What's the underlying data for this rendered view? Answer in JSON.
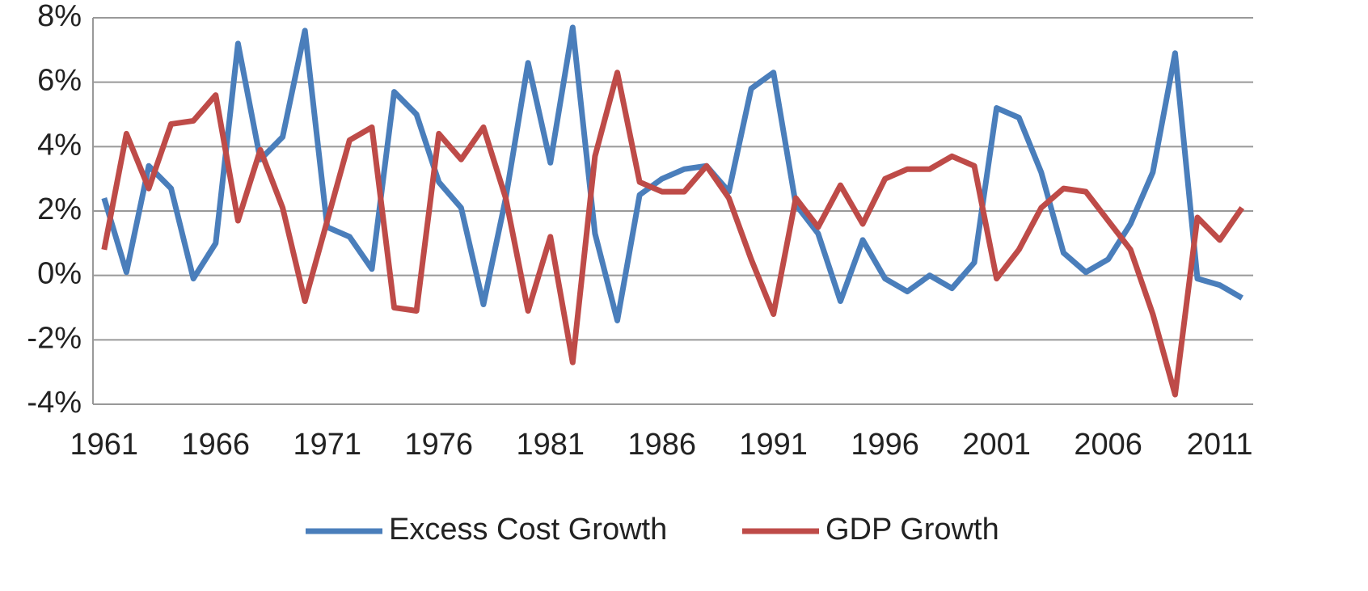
{
  "chart_data": {
    "type": "line",
    "x": [
      1961,
      1962,
      1963,
      1964,
      1965,
      1966,
      1967,
      1968,
      1969,
      1970,
      1971,
      1972,
      1973,
      1974,
      1975,
      1976,
      1977,
      1978,
      1979,
      1980,
      1981,
      1982,
      1983,
      1984,
      1985,
      1986,
      1987,
      1988,
      1989,
      1990,
      1991,
      1992,
      1993,
      1994,
      1995,
      1996,
      1997,
      1998,
      1999,
      2000,
      2001,
      2002,
      2003,
      2004,
      2005,
      2006,
      2007,
      2008,
      2009,
      2010,
      2011,
      2012
    ],
    "series": [
      {
        "name": "Excess Cost Growth",
        "color": "#4a7ebb",
        "values": [
          2.4,
          0.1,
          3.4,
          2.7,
          -0.1,
          1.0,
          7.2,
          3.6,
          4.3,
          7.6,
          1.5,
          1.2,
          0.2,
          5.7,
          5.0,
          2.9,
          2.1,
          -0.9,
          2.4,
          6.6,
          3.5,
          7.7,
          1.3,
          -1.4,
          2.5,
          3.0,
          3.3,
          3.4,
          2.6,
          5.8,
          6.3,
          2.2,
          1.3,
          -0.8,
          1.1,
          -0.1,
          -0.5,
          0.0,
          -0.4,
          0.4,
          5.2,
          4.9,
          3.2,
          0.7,
          0.1,
          0.5,
          1.6,
          3.2,
          6.9,
          -0.1,
          -0.3,
          -0.7
        ]
      },
      {
        "name": "GDP Growth",
        "color": "#be4b48",
        "values": [
          0.8,
          4.4,
          2.7,
          4.7,
          4.8,
          5.6,
          1.7,
          3.9,
          2.1,
          -0.8,
          1.7,
          4.2,
          4.6,
          -1.0,
          -1.1,
          4.4,
          3.6,
          4.6,
          2.4,
          -1.1,
          1.2,
          -2.7,
          3.7,
          6.3,
          2.9,
          2.6,
          2.6,
          3.4,
          2.4,
          0.5,
          -1.2,
          2.4,
          1.5,
          2.8,
          1.6,
          3.0,
          3.3,
          3.3,
          3.7,
          3.4,
          -0.1,
          0.8,
          2.1,
          2.7,
          2.6,
          1.7,
          0.8,
          -1.2,
          -3.7,
          1.8,
          1.1,
          2.1
        ]
      }
    ],
    "xlim": [
      1960.5,
      2012.5
    ],
    "xticks": [
      1961,
      1966,
      1971,
      1976,
      1981,
      1986,
      1991,
      1996,
      2001,
      2006,
      2011
    ],
    "ylim": [
      -4,
      8
    ],
    "yticks": [
      {
        "value": -4,
        "label": "-4%"
      },
      {
        "value": -2,
        "label": "-2%"
      },
      {
        "value": 0,
        "label": "0%"
      },
      {
        "value": 2,
        "label": "2%"
      },
      {
        "value": 4,
        "label": "4%"
      },
      {
        "value": 6,
        "label": "6%"
      },
      {
        "value": 8,
        "label": "8%"
      }
    ],
    "grid": true,
    "legend": "bottom"
  }
}
